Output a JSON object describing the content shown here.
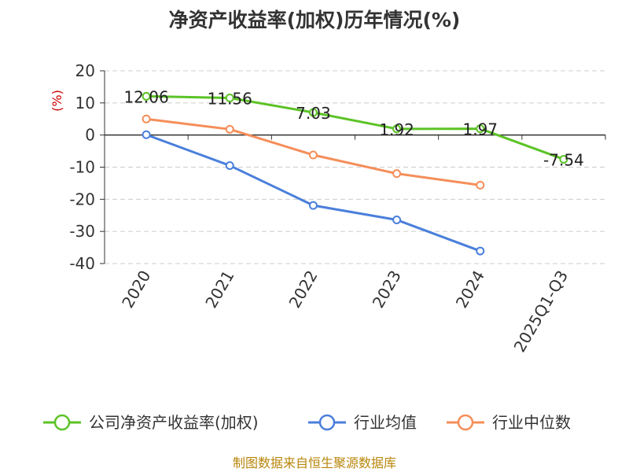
{
  "chart_data": {
    "type": "line",
    "title": "净资产收益率(加权)历年情况(%)",
    "ylabel": "(%)",
    "xlabel": "",
    "categories": [
      "2020",
      "2021",
      "2022",
      "2023",
      "2024",
      "2025Q1-Q3"
    ],
    "yticks": [
      20,
      10,
      0,
      -10,
      -20,
      -30,
      -40
    ],
    "ylim": [
      -40,
      20
    ],
    "grid": true,
    "legend_position": "bottom",
    "series": [
      {
        "name": "公司净资产收益率(加权)",
        "color": "#5cc326",
        "values": [
          12.06,
          11.56,
          7.03,
          1.92,
          1.97,
          -7.54
        ],
        "labels": [
          "12.06",
          "11.56",
          "7.03",
          "1.92",
          "1.97",
          "-7.54"
        ]
      },
      {
        "name": "行业均值",
        "color": "#4a7fdb",
        "values": [
          0.1,
          -9.5,
          -21.9,
          -26.4,
          -36.1,
          null
        ]
      },
      {
        "name": "行业中位数",
        "color": "#f58e5a",
        "values": [
          5.0,
          1.8,
          -6.2,
          -12.0,
          -15.6,
          null
        ]
      }
    ]
  },
  "source_note": "制图数据来自恒生聚源数据库"
}
